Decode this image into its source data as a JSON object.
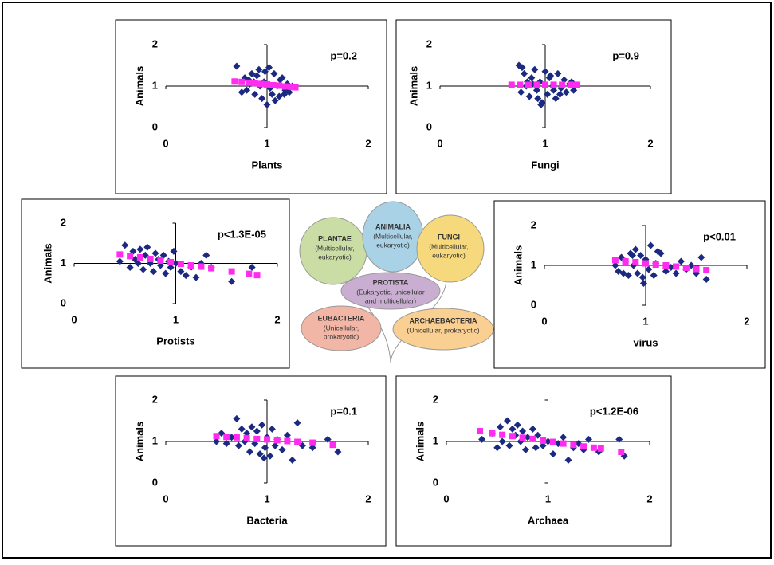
{
  "chart_data": [
    {
      "type": "scatter",
      "xlabel": "Plants",
      "ylabel": "Animals",
      "annotation": "p=0.2",
      "xlim": [
        0,
        2
      ],
      "ylim": [
        0,
        2
      ],
      "xticks": [
        0,
        1,
        2
      ],
      "yticks": [
        0,
        1,
        2
      ],
      "series": [
        {
          "color": "#1b2a80",
          "marker": "diamond",
          "x": [
            0.7,
            0.75,
            0.78,
            0.8,
            0.82,
            0.85,
            0.88,
            0.9,
            0.92,
            0.95,
            0.97,
            1.0,
            1.02,
            1.05,
            1.07,
            1.1,
            1.12,
            1.15,
            1.18,
            1.2,
            1.22,
            1.25,
            0.93,
            0.98,
            1.03,
            0.87,
            1.13,
            1.08,
            0.83,
            1.17
          ],
          "values": [
            1.48,
            0.85,
            1.2,
            0.9,
            1.15,
            1.3,
            0.8,
            1.25,
            1.4,
            0.7,
            1.1,
            0.55,
            1.45,
            0.8,
            1.3,
            1.0,
            0.75,
            1.2,
            0.9,
            1.05,
            0.85,
            1.0,
            1.0,
            1.35,
            0.95,
            1.1,
            1.15,
            0.65,
            1.05,
            0.8
          ]
        },
        {
          "color": "#ff2cf0",
          "marker": "square",
          "x": [
            0.68,
            0.75,
            0.82,
            0.88,
            0.94,
            1.0,
            1.06,
            1.12,
            1.18,
            1.24,
            1.28
          ],
          "values": [
            1.11,
            1.1,
            1.08,
            1.07,
            1.05,
            1.04,
            1.02,
            1.01,
            0.99,
            0.98,
            0.97
          ]
        }
      ]
    },
    {
      "type": "scatter",
      "xlabel": "Fungi",
      "ylabel": "Animals",
      "annotation": "p=0.9",
      "xlim": [
        0,
        2
      ],
      "ylim": [
        0,
        2
      ],
      "xticks": [
        0,
        1,
        2
      ],
      "yticks": [
        0,
        1,
        2
      ],
      "series": [
        {
          "color": "#1b2a80",
          "marker": "diamond",
          "x": [
            0.75,
            0.77,
            0.8,
            0.82,
            0.85,
            0.87,
            0.9,
            0.92,
            0.95,
            0.97,
            1.0,
            1.02,
            1.05,
            1.07,
            1.1,
            1.12,
            1.15,
            1.18,
            1.2,
            1.23,
            1.27,
            0.78,
            0.88,
            0.96,
            1.04,
            1.14,
            0.83,
            0.93,
            1.08,
            1.25
          ],
          "values": [
            1.5,
            0.85,
            1.3,
            1.0,
            0.75,
            1.2,
            1.4,
            0.9,
            1.1,
            0.6,
            1.35,
            0.8,
            1.25,
            1.0,
            0.7,
            1.3,
            0.95,
            1.15,
            0.85,
            1.05,
            0.9,
            1.45,
            1.05,
            0.55,
            1.2,
            0.8,
            1.1,
            0.7,
            0.9,
            1.1
          ]
        },
        {
          "color": "#ff2cf0",
          "marker": "square",
          "x": [
            0.68,
            0.76,
            0.84,
            0.92,
            1.0,
            1.08,
            1.16,
            1.24,
            1.3
          ],
          "values": [
            1.03,
            1.03,
            1.03,
            1.03,
            1.03,
            1.03,
            1.03,
            1.03,
            1.03
          ]
        }
      ]
    },
    {
      "type": "scatter",
      "xlabel": "Protists",
      "ylabel": "Animals",
      "annotation": "p<1.3E-05",
      "xlim": [
        0,
        2
      ],
      "ylim": [
        0,
        2
      ],
      "xticks": [
        0,
        1,
        2
      ],
      "yticks": [
        0,
        1,
        2
      ],
      "series": [
        {
          "color": "#1b2a80",
          "marker": "diamond",
          "x": [
            0.45,
            0.5,
            0.55,
            0.58,
            0.6,
            0.63,
            0.65,
            0.68,
            0.7,
            0.72,
            0.75,
            0.78,
            0.8,
            0.83,
            0.85,
            0.88,
            0.9,
            0.93,
            0.95,
            1.0,
            1.05,
            1.1,
            1.15,
            1.2,
            1.25,
            1.3,
            1.35,
            1.55,
            1.75,
            0.98
          ],
          "values": [
            1.05,
            1.45,
            0.9,
            1.3,
            1.1,
            1.0,
            1.35,
            0.85,
            1.2,
            1.4,
            1.0,
            0.8,
            1.25,
            1.1,
            0.95,
            1.2,
            0.75,
            1.05,
            0.9,
            1.0,
            0.8,
            0.7,
            0.9,
            0.65,
            1.0,
            1.2,
            0.9,
            0.55,
            0.9,
            1.3
          ]
        },
        {
          "color": "#ff2cf0",
          "marker": "square",
          "x": [
            0.45,
            0.55,
            0.65,
            0.75,
            0.85,
            0.95,
            1.05,
            1.15,
            1.25,
            1.35,
            1.55,
            1.72,
            1.8
          ],
          "values": [
            1.22,
            1.18,
            1.15,
            1.11,
            1.07,
            1.03,
            0.99,
            0.95,
            0.92,
            0.88,
            0.8,
            0.74,
            0.71
          ]
        }
      ]
    },
    {
      "type": "scatter",
      "xlabel": "virus",
      "ylabel": "Animals",
      "annotation": "p<0.01",
      "xlim": [
        0,
        2
      ],
      "ylim": [
        0,
        2
      ],
      "xticks": [
        0,
        1,
        2
      ],
      "yticks": [
        0,
        1,
        2
      ],
      "series": [
        {
          "color": "#1b2a80",
          "marker": "diamond",
          "x": [
            0.7,
            0.73,
            0.76,
            0.78,
            0.8,
            0.83,
            0.85,
            0.88,
            0.9,
            0.92,
            0.95,
            0.98,
            1.0,
            1.03,
            1.05,
            1.08,
            1.1,
            1.15,
            1.2,
            1.25,
            1.3,
            1.35,
            1.4,
            1.45,
            1.5,
            1.55,
            1.6,
            0.87,
            0.97,
            1.12
          ],
          "values": [
            1.0,
            0.85,
            1.2,
            0.8,
            1.1,
            0.75,
            1.3,
            1.0,
            1.4,
            0.8,
            1.25,
            0.55,
            1.15,
            0.9,
            1.5,
            0.75,
            1.05,
            1.3,
            0.85,
            0.95,
            0.8,
            1.1,
            0.9,
            1.0,
            0.8,
            1.2,
            0.65,
            1.25,
            0.7,
            1.35
          ]
        },
        {
          "color": "#ff2cf0",
          "marker": "square",
          "x": [
            0.7,
            0.8,
            0.9,
            1.0,
            1.1,
            1.2,
            1.3,
            1.4,
            1.5,
            1.6
          ],
          "values": [
            1.13,
            1.1,
            1.08,
            1.05,
            1.02,
            1.0,
            0.97,
            0.94,
            0.91,
            0.88
          ]
        }
      ]
    },
    {
      "type": "scatter",
      "xlabel": "Bacteria",
      "ylabel": "Animals",
      "annotation": "p=0.1",
      "xlim": [
        0,
        2
      ],
      "ylim": [
        0,
        2
      ],
      "xticks": [
        0,
        1,
        2
      ],
      "yticks": [
        0,
        1,
        2
      ],
      "series": [
        {
          "color": "#1b2a80",
          "marker": "diamond",
          "x": [
            0.5,
            0.55,
            0.6,
            0.65,
            0.7,
            0.72,
            0.75,
            0.78,
            0.8,
            0.83,
            0.85,
            0.88,
            0.9,
            0.93,
            0.95,
            0.98,
            1.0,
            1.03,
            1.05,
            1.08,
            1.1,
            1.15,
            1.2,
            1.25,
            1.3,
            1.35,
            1.45,
            1.6,
            1.7,
            0.97
          ],
          "values": [
            1.0,
            1.2,
            0.95,
            1.1,
            1.55,
            0.9,
            1.3,
            1.0,
            1.2,
            0.75,
            1.35,
            0.95,
            1.25,
            0.7,
            1.4,
            0.85,
            1.1,
            0.65,
            1.3,
            0.9,
            1.05,
            0.8,
            1.15,
            0.55,
            1.45,
            0.9,
            0.85,
            1.05,
            0.75,
            0.6
          ]
        },
        {
          "color": "#ff2cf0",
          "marker": "square",
          "x": [
            0.5,
            0.6,
            0.7,
            0.8,
            0.9,
            1.0,
            1.1,
            1.2,
            1.3,
            1.45,
            1.65
          ],
          "values": [
            1.13,
            1.11,
            1.1,
            1.08,
            1.06,
            1.05,
            1.03,
            1.01,
            0.99,
            0.97,
            0.92
          ]
        }
      ]
    },
    {
      "type": "scatter",
      "xlabel": "Archaea",
      "ylabel": "Animals",
      "annotation": "p<1.2E-06",
      "xlim": [
        0,
        2
      ],
      "ylim": [
        0,
        2
      ],
      "xticks": [
        0,
        1,
        2
      ],
      "yticks": [
        0,
        1,
        2
      ],
      "series": [
        {
          "color": "#1b2a80",
          "marker": "diamond",
          "x": [
            0.35,
            0.45,
            0.5,
            0.53,
            0.55,
            0.6,
            0.62,
            0.65,
            0.68,
            0.7,
            0.73,
            0.75,
            0.78,
            0.8,
            0.85,
            0.88,
            0.9,
            0.95,
            1.0,
            1.05,
            1.1,
            1.15,
            1.2,
            1.25,
            1.3,
            1.35,
            1.4,
            1.5,
            1.7,
            1.75
          ],
          "values": [
            1.05,
            1.2,
            0.85,
            1.35,
            1.0,
            1.5,
            0.9,
            1.3,
            1.15,
            1.4,
            1.0,
            1.25,
            0.8,
            1.1,
            1.3,
            0.85,
            1.15,
            0.9,
            1.0,
            0.7,
            0.95,
            1.1,
            0.55,
            0.85,
            0.95,
            0.8,
            1.05,
            0.75,
            1.05,
            0.65
          ]
        },
        {
          "color": "#ff2cf0",
          "marker": "square",
          "x": [
            0.33,
            0.45,
            0.55,
            0.65,
            0.75,
            0.85,
            0.95,
            1.05,
            1.15,
            1.25,
            1.35,
            1.45,
            1.52,
            1.72
          ],
          "values": [
            1.25,
            1.2,
            1.16,
            1.13,
            1.09,
            1.06,
            1.02,
            0.99,
            0.95,
            0.92,
            0.88,
            0.85,
            0.83,
            0.75
          ]
        }
      ]
    }
  ],
  "diagram": {
    "kingdoms": [
      {
        "name": "PLANTAE",
        "lines": [
          "(Multicellular,",
          "eukaryotic)"
        ]
      },
      {
        "name": "ANIMALIA",
        "lines": [
          "(Multicellular,",
          "eukaryotic)"
        ]
      },
      {
        "name": "FUNGI",
        "lines": [
          "(Multicellular,",
          "eukaryotic)"
        ]
      },
      {
        "name": "PROTISTA",
        "lines": [
          "(Eukaryotic, unicellular",
          "and multicellular)"
        ]
      },
      {
        "name": "EUBACTERIA",
        "lines": [
          "(Unicellular,",
          "prokaryotic)"
        ]
      },
      {
        "name": "ARCHAEBACTERIA",
        "lines": [
          "(Unicellular, prokaryotic)"
        ]
      }
    ]
  }
}
